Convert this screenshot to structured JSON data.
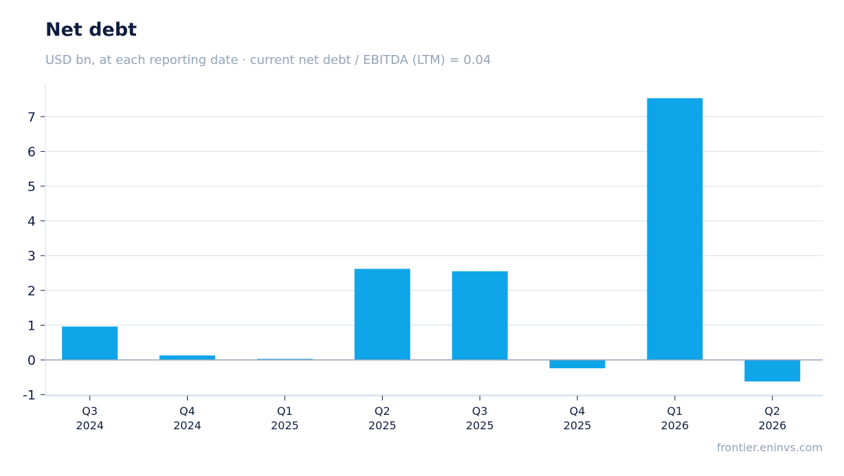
{
  "header": {
    "title": "Net debt",
    "subtitle": "USD bn, at each reporting date · current net debt / EBITDA (LTM) = 0.04"
  },
  "footer": {
    "source": "frontier.eninvs.com"
  },
  "colors": {
    "bar": "#0ea5e9",
    "grid": "#e2e8f0",
    "zero_line": "#94a3b8",
    "text": "#0f1c3f",
    "muted": "#94a3b8"
  },
  "chart_data": {
    "type": "bar",
    "categories": [
      [
        "Q3",
        "2024"
      ],
      [
        "Q4",
        "2024"
      ],
      [
        "Q1",
        "2025"
      ],
      [
        "Q2",
        "2025"
      ],
      [
        "Q3",
        "2025"
      ],
      [
        "Q4",
        "2025"
      ],
      [
        "Q1",
        "2026"
      ],
      [
        "Q2",
        "2026"
      ]
    ],
    "values": [
      0.96,
      0.13,
      0.03,
      2.62,
      2.55,
      -0.24,
      7.53,
      -0.62
    ],
    "yticks": [
      -1,
      0,
      1,
      2,
      3,
      4,
      5,
      6,
      7
    ],
    "ytick_labels": [
      "-1",
      "0",
      "1",
      "2",
      "3",
      "4",
      "5",
      "6",
      "7"
    ],
    "ylim": [
      -1,
      7.9
    ],
    "grid": true,
    "legend": "none"
  }
}
